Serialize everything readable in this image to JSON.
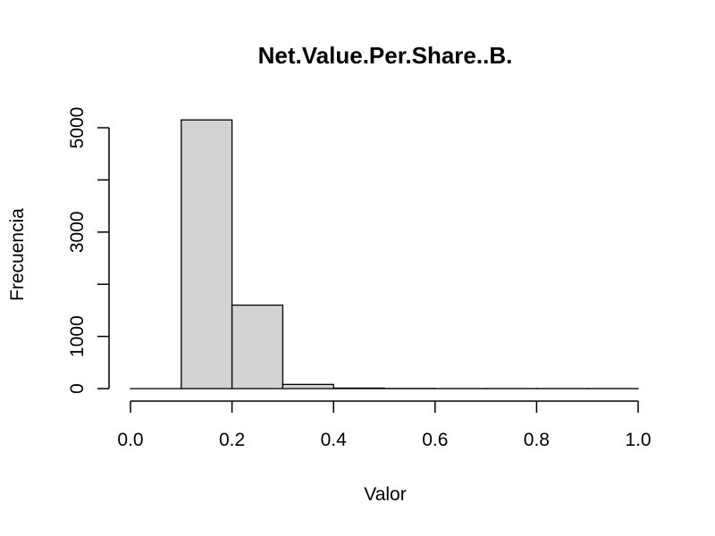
{
  "chart_data": {
    "type": "bar",
    "title": "Net.Value.Per.Share..B.",
    "xlabel": "Valor",
    "ylabel": "Frecuencia",
    "bins": [
      {
        "from": 0.0,
        "to": 0.1,
        "count": 0
      },
      {
        "from": 0.1,
        "to": 0.2,
        "count": 5150
      },
      {
        "from": 0.2,
        "to": 0.3,
        "count": 1600
      },
      {
        "from": 0.3,
        "to": 0.4,
        "count": 80
      },
      {
        "from": 0.4,
        "to": 0.5,
        "count": 10
      },
      {
        "from": 0.5,
        "to": 0.6,
        "count": 3
      },
      {
        "from": 0.6,
        "to": 0.7,
        "count": 1
      },
      {
        "from": 0.7,
        "to": 0.8,
        "count": 1
      },
      {
        "from": 0.8,
        "to": 0.9,
        "count": 1
      },
      {
        "from": 0.9,
        "to": 1.0,
        "count": 1
      }
    ],
    "xlim": [
      0.0,
      1.0
    ],
    "xticks": [
      0.0,
      0.2,
      0.4,
      0.6,
      0.8,
      1.0
    ],
    "xtick_labels": [
      "0.0",
      "0.2",
      "0.4",
      "0.6",
      "0.8",
      "1.0"
    ],
    "yticks": [
      0,
      1000,
      2000,
      3000,
      4000,
      5000
    ],
    "ytick_labels": [
      "0",
      "1000",
      "3000",
      "5000"
    ],
    "ytick_labeled": [
      0,
      1000,
      3000,
      5000
    ],
    "ylim": [
      0,
      5000
    ],
    "bar_color": "#d3d3d3",
    "grid": false
  }
}
